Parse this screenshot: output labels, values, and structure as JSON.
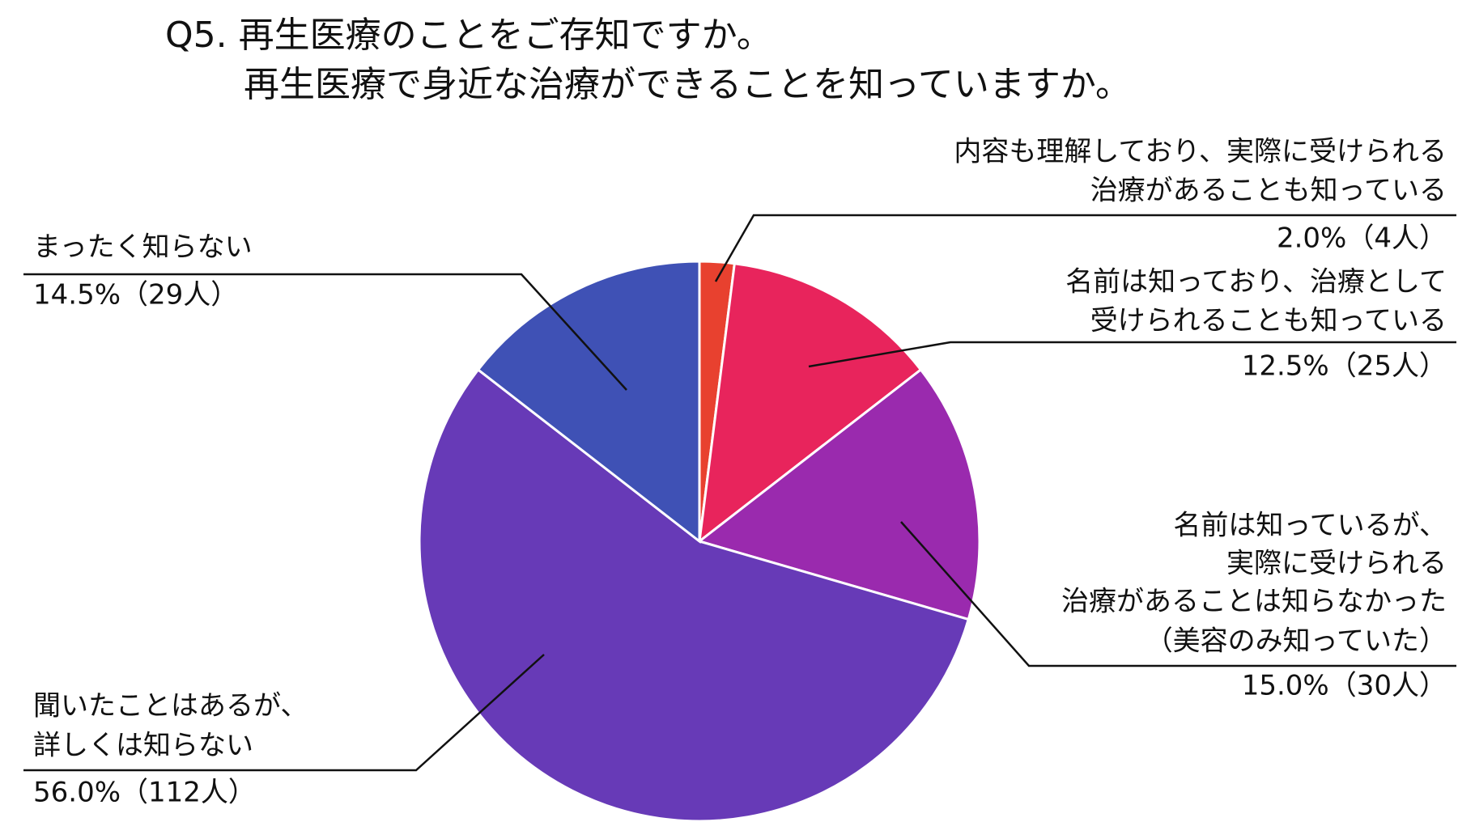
{
  "chart_data": {
    "type": "pie",
    "title": [
      "Q5. 再生医療のことをご存知ですか。",
      "再生医療で身近な治療ができることを知っていますか。"
    ],
    "categories": [
      [
        "内容も理解しており、実際に受けられる",
        "治療があることも知っている"
      ],
      [
        "名前は知っており、治療として",
        "受けられることも知っている"
      ],
      [
        "名前は知っているが、",
        "実際に受けられる",
        "治療があることは知らなかった",
        "（美容のみ知っていた）"
      ],
      [
        "聞いたことはあるが、",
        "詳しくは知らない"
      ],
      [
        "まったく知らない"
      ]
    ],
    "values": [
      2.0,
      12.5,
      15.0,
      56.0,
      14.5
    ],
    "value_labels": [
      "2.0%（4人）",
      "12.5%（25人）",
      "15.0%（30人）",
      "56.0%（112人）",
      "14.5%（29人）"
    ],
    "colors": [
      "#e8412f",
      "#e8245c",
      "#9a2aae",
      "#673ab7",
      "#3f51b5"
    ]
  }
}
